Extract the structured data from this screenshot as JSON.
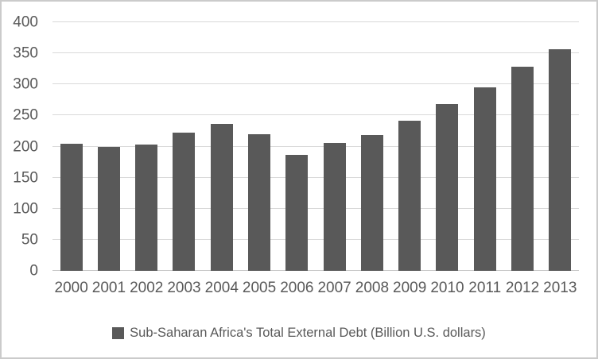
{
  "chart_data": {
    "type": "bar",
    "title": "",
    "xlabel": "",
    "ylabel": "",
    "categories": [
      "2000",
      "2001",
      "2002",
      "2003",
      "2004",
      "2005",
      "2006",
      "2007",
      "2008",
      "2009",
      "2010",
      "2011",
      "2012",
      "2013"
    ],
    "values": [
      205,
      199,
      203,
      222,
      236,
      220,
      187,
      206,
      218,
      242,
      268,
      295,
      328,
      356
    ],
    "series_name": "Sub-Saharan Africa's Total External Debt (Billion U.S. dollars)",
    "ylim": [
      0,
      400
    ],
    "y_ticks": [
      0,
      50,
      100,
      150,
      200,
      250,
      300,
      350,
      400
    ],
    "grid": true,
    "legend_position": "bottom",
    "colors": {
      "bar": "#595959",
      "gridline": "#d9d9d9",
      "axis_line": "#c6c6c6",
      "text": "#595959",
      "background": "#ffffff",
      "frame_border": "#cbcbcb"
    }
  }
}
